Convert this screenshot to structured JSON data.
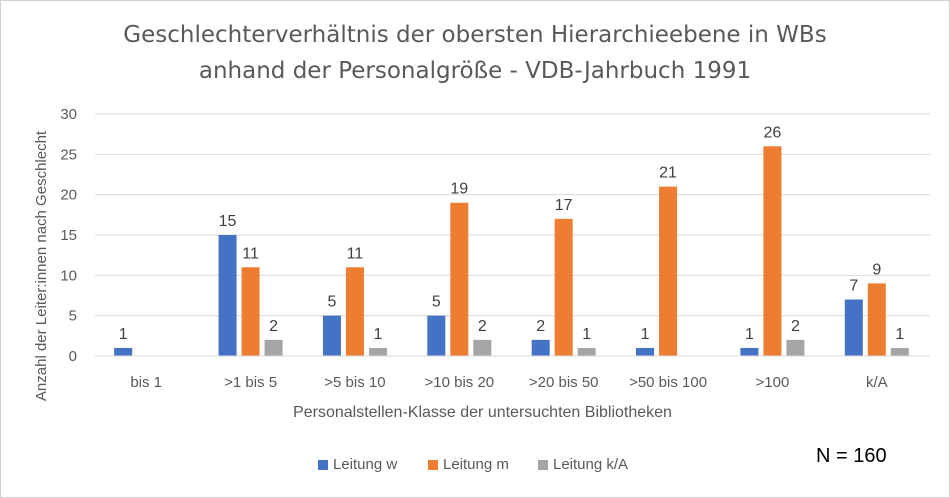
{
  "title": {
    "line1": "Geschlechterverhältnis der obersten Hierarchieebene in WBs",
    "line2": "anhand der Personalgröße - VDB-Jahrbuch 1991"
  },
  "note": "N = 160",
  "colors": {
    "w": "#4472c4",
    "m": "#ed7d31",
    "k": "#a5a5a5",
    "grid": "#d9d9d9",
    "text": "#595959"
  },
  "chart_data": {
    "type": "bar",
    "title": "Geschlechterverhältnis der obersten Hierarchieebene in WBs anhand der Personalgröße - VDB-Jahrbuch 1991",
    "xlabel": "Personalstellen-Klasse der untersuchten Bibliotheken",
    "ylabel": "Anzahl der Leiter:innen  nach Geschlecht",
    "ylim": [
      0,
      30
    ],
    "yticks": [
      0,
      5,
      10,
      15,
      20,
      25,
      30
    ],
    "grid": true,
    "legend_position": "bottom",
    "categories": [
      ">bis 1",
      ">1 bis 5",
      ">5 bis 10",
      ">10 bis 20",
      ">20 bis 50",
      ">50 bis 100",
      ">100",
      "k/A"
    ],
    "category_labels": [
      "bis 1",
      ">1 bis 5",
      ">5 bis 10",
      ">10 bis 20",
      ">20 bis 50",
      ">50 bis 100",
      ">100",
      "k/A"
    ],
    "series": [
      {
        "name": "Leitung w",
        "color": "#4472c4",
        "values": [
          1,
          15,
          5,
          5,
          2,
          1,
          1,
          7
        ]
      },
      {
        "name": "Leitung m",
        "color": "#ed7d31",
        "values": [
          null,
          11,
          11,
          19,
          17,
          21,
          26,
          9
        ]
      },
      {
        "name": "Leitung k/A",
        "color": "#a5a5a5",
        "values": [
          null,
          2,
          1,
          2,
          1,
          null,
          2,
          1
        ]
      }
    ]
  }
}
